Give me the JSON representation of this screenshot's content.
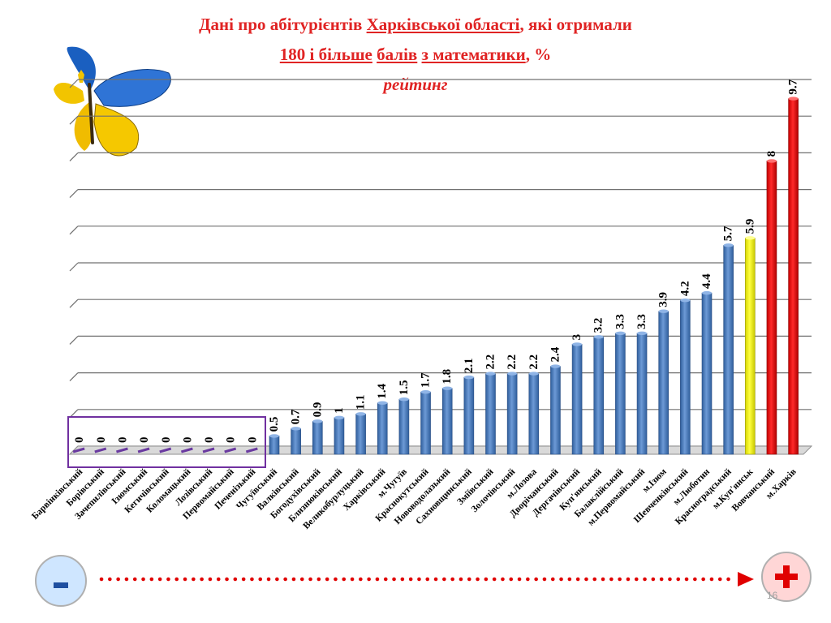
{
  "title": {
    "line1_a": "Дані про абітурієнтів ",
    "line1_u": "Харківської  області",
    "line1_b": ", які отримали",
    "line2_u1": "180 і більше",
    "line2_sp1": " ",
    "line2_u2": "балів",
    "line2_sp2": " ",
    "line2_u3": "з математики",
    "line2_b": ", %",
    "line3": "рейтинг"
  },
  "nav": {
    "minus_label": "-",
    "plus_label": "+"
  },
  "page_number": "16",
  "colors": {
    "bar": "#4a7ec0",
    "highlight": "#ffff00",
    "top": "#ff0000",
    "title": "#e02424",
    "frame": "#7030a0",
    "arrow": "#e00000"
  },
  "chart_data": {
    "type": "bar",
    "ylim": [
      0,
      10
    ],
    "grid": true,
    "categories": [
      "Барвінківський",
      "Борівський",
      "Зачепилівський",
      "Ізюмський",
      "Кегичівський",
      "Коломацький",
      "Лозівський",
      "Первомайський",
      "Печенізький",
      "Чугуївський",
      "Валківський",
      "Богодухівський",
      "Близнюківський",
      "Великобурлуцький",
      "Харківський",
      "м.Чугуїв",
      "Краснокутський",
      "Нововодолазький",
      "Сахновщинський",
      "Зміївський",
      "Золочівський",
      "м.Лозова",
      "Дворічанський",
      "Дергачівський",
      "Куп'янський",
      "Балаклійський",
      "м.Первомайський",
      "м.Ізюм",
      "Шевченківський",
      "м.Люботин",
      "Красноградський",
      "м.Куп'янськ",
      "Вовчанський",
      "м.Харків"
    ],
    "values": [
      0,
      0,
      0,
      0,
      0,
      0,
      0,
      0,
      0,
      0.5,
      0.7,
      0.9,
      1,
      1.1,
      1.4,
      1.5,
      1.7,
      1.8,
      2.1,
      2.2,
      2.2,
      2.2,
      2.4,
      3,
      3.2,
      3.3,
      3.3,
      3.9,
      4.2,
      4.4,
      5.7,
      5.9,
      8,
      9.7
    ],
    "value_labels": [
      "0",
      "0",
      "0",
      "0",
      "0",
      "0",
      "0",
      "0",
      "0",
      "0.5",
      "0.7",
      "0.9",
      "1",
      "1.1",
      "1.4",
      "1.5",
      "1.7",
      "1.8",
      "2.1",
      "2.2",
      "2.2",
      "2.2",
      "2.4",
      "3",
      "3.2",
      "3.3",
      "3.3",
      "3.9",
      "4.2",
      "4.4",
      "5.7",
      "5.9",
      "8",
      "9.7"
    ],
    "bar_colors": [
      "blue",
      "blue",
      "blue",
      "blue",
      "blue",
      "blue",
      "blue",
      "blue",
      "blue",
      "blue",
      "blue",
      "blue",
      "blue",
      "blue",
      "blue",
      "blue",
      "blue",
      "blue",
      "blue",
      "blue",
      "blue",
      "blue",
      "blue",
      "blue",
      "blue",
      "blue",
      "blue",
      "blue",
      "blue",
      "blue",
      "blue",
      "yellow",
      "red",
      "red"
    ]
  }
}
